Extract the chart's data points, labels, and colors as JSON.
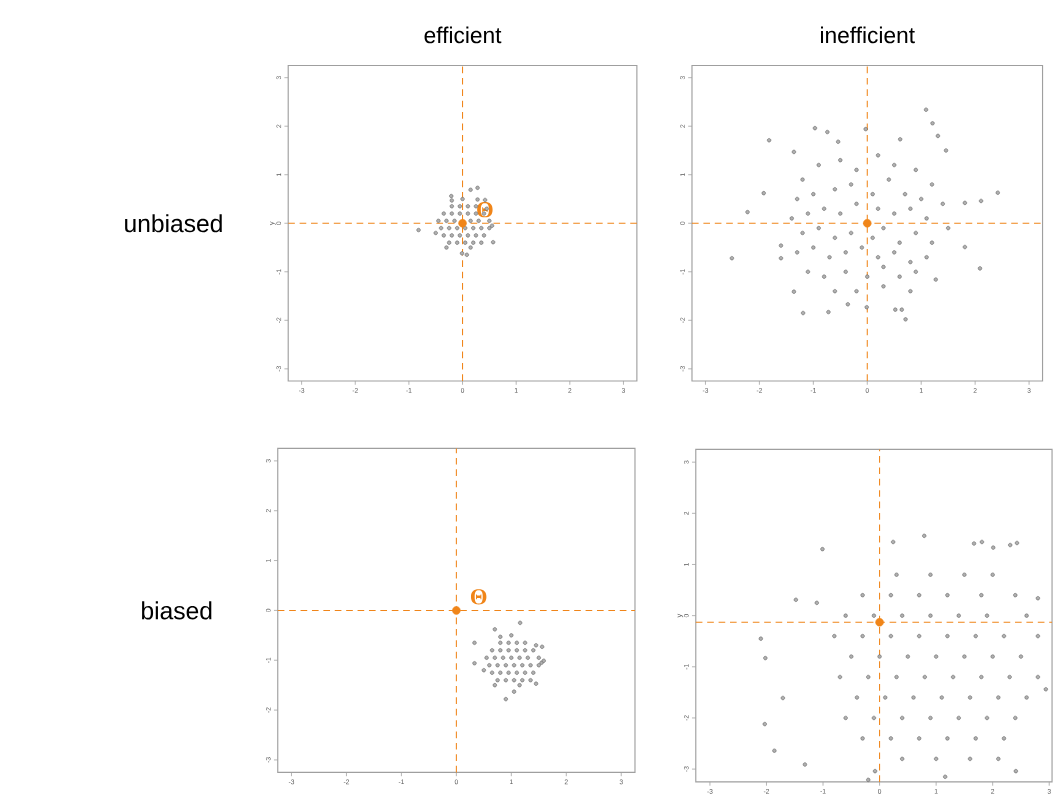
{
  "chart_data": [
    {
      "type": "scatter",
      "title": "efficient",
      "ylabel": "y",
      "xlim": [
        -3.25,
        3.25
      ],
      "ylim": [
        -3.25,
        3.25
      ],
      "xticks": [
        -3,
        -2,
        -1,
        0,
        1,
        2,
        3
      ],
      "yticks": [
        -3,
        -2,
        -1,
        0,
        1,
        2,
        3
      ],
      "annotations": [
        "unbiased",
        {
          "text": "Θ",
          "x": 0,
          "y": 0
        }
      ],
      "ref_lines": [
        {
          "axis": "x",
          "value": 0,
          "color": "#f08519",
          "line_style": "dashed"
        },
        {
          "axis": "y",
          "value": 0,
          "color": "#f08519",
          "line_style": "dashed"
        }
      ],
      "series": [
        {
          "color": "#4d4d4d",
          "marker": "circle",
          "x": [
            -0.2,
            -0.05,
            0.1,
            0.25,
            -0.35,
            -0.2,
            -0.05,
            0.1,
            0.25,
            0.4,
            -0.45,
            -0.3,
            -0.15,
            0,
            0.15,
            0.3,
            0.5,
            -0.4,
            -0.25,
            -0.1,
            0.05,
            0.2,
            0.35,
            0.5,
            -0.35,
            -0.2,
            -0.05,
            0.1,
            0.25,
            0.4,
            -0.25,
            -0.1,
            0.05,
            0.2,
            0.35,
            -0.5,
            0.55,
            0.45,
            -0.3,
            0.15,
            0,
            -0.2,
            -0.82,
            0.15,
            0.28,
            0.42,
            0.28,
            0.57,
            0.08,
            -0.01,
            -0.21
          ],
          "values": [
            0.35,
            0.35,
            0.35,
            0.35,
            0.2,
            0.2,
            0.2,
            0.2,
            0.2,
            0.2,
            0.05,
            0.05,
            0.05,
            null,
            0.05,
            0.05,
            0.05,
            -0.1,
            -0.1,
            -0.1,
            -0.1,
            -0.1,
            -0.1,
            -0.1,
            -0.25,
            -0.25,
            -0.25,
            -0.25,
            -0.25,
            -0.25,
            -0.4,
            -0.4,
            -0.4,
            -0.4,
            -0.4,
            -0.2,
            -0.05,
            0.3,
            -0.5,
            -0.5,
            0.5,
            0.47,
            -0.14,
            0.69,
            0.73,
            0.48,
            0.49,
            -0.39,
            -0.65,
            -0.62,
            0.56
          ]
        },
        {
          "color": "#f08519",
          "marker": "circle",
          "x": [
            0
          ],
          "values": [
            0
          ]
        }
      ]
    },
    {
      "type": "scatter",
      "title": "inefficient",
      "xlim": [
        -3.25,
        3.25
      ],
      "ylim": [
        -3.25,
        3.25
      ],
      "xticks": [
        -3,
        -2,
        -1,
        0,
        1,
        2,
        3
      ],
      "yticks": [
        -3,
        -2,
        -1,
        0,
        1,
        2,
        3
      ],
      "ref_lines": [
        {
          "axis": "x",
          "value": 0,
          "color": "#f08519",
          "line_style": "dashed"
        },
        {
          "axis": "y",
          "value": 0,
          "color": "#f08519",
          "line_style": "dashed"
        }
      ],
      "series": [
        {
          "color": "#4d4d4d",
          "marker": "circle",
          "x": [
            -1.2,
            -0.9,
            -0.5,
            -0.2,
            0.2,
            0.5,
            0.9,
            1.2,
            -1.3,
            -1.0,
            -0.6,
            -0.3,
            0.1,
            0.4,
            0.7,
            1.0,
            1.4,
            -1.4,
            -1.1,
            -0.8,
            -0.5,
            -0.2,
            0.2,
            0.5,
            0.8,
            1.1,
            1.5,
            -1.2,
            -0.9,
            -0.6,
            -0.3,
            0.1,
            0.3,
            0.6,
            0.9,
            1.2,
            -1.3,
            -1.0,
            -0.7,
            -0.4,
            -0.1,
            0.2,
            0.5,
            0.8,
            1.1,
            -1.1,
            -0.8,
            -0.4,
            0.0,
            0.3,
            0.6,
            0.9,
            -0.6,
            -0.2,
            0.3,
            0.8,
            -2.51,
            -2.22,
            -1.92,
            -1.82,
            -0.97,
            -0.74,
            -0.03,
            1.09,
            1.21,
            1.31,
            2.42,
            2.11,
            2.09,
            1.27,
            0.71,
            0.64,
            0.52,
            -0.72,
            -1.19,
            -1.36,
            -1.6,
            -1.6,
            1.81,
            1.81,
            1.46,
            -0.01,
            -0.36,
            -1.36,
            -0.54,
            0.61
          ],
          "values": [
            0.9,
            1.2,
            1.3,
            1.1,
            1.4,
            1.2,
            1.1,
            0.8,
            0.5,
            0.6,
            0.7,
            0.8,
            0.6,
            0.9,
            0.6,
            0.5,
            0.4,
            0.1,
            0.2,
            0.3,
            0.2,
            0.4,
            0.3,
            0.2,
            0.3,
            0.1,
            -0.1,
            -0.2,
            -0.1,
            -0.3,
            -0.2,
            -0.3,
            -0.1,
            -0.4,
            -0.2,
            -0.4,
            -0.6,
            -0.5,
            -0.7,
            -0.6,
            -0.5,
            -0.7,
            -0.6,
            -0.8,
            -0.7,
            -1.0,
            -1.1,
            -1.0,
            -1.1,
            -0.9,
            -1.1,
            -1.0,
            -1.4,
            -1.4,
            -1.3,
            -1.4,
            -0.72,
            0.23,
            0.62,
            1.71,
            1.96,
            1.88,
            1.94,
            2.34,
            2.06,
            1.8,
            0.63,
            0.46,
            -0.93,
            -1.16,
            -1.98,
            -1.78,
            -1.78,
            -1.83,
            -1.85,
            -1.41,
            -0.72,
            -0.46,
            -0.49,
            0.42,
            1.5,
            -1.73,
            -1.67,
            1.47,
            1.68,
            1.73
          ]
        },
        {
          "color": "#f08519",
          "marker": "circle",
          "x": [
            0
          ],
          "values": [
            0
          ]
        }
      ]
    },
    {
      "type": "scatter",
      "xlim": [
        -3.25,
        3.25
      ],
      "ylim": [
        -3.25,
        3.25
      ],
      "xticks": [
        -3,
        -2,
        -1,
        0,
        1,
        2,
        3
      ],
      "yticks": [
        -3,
        -2,
        -1,
        0,
        1,
        2,
        3
      ],
      "annotations": [
        "biased",
        {
          "text": "Θ",
          "x": 0,
          "y": 0
        }
      ],
      "ref_lines": [
        {
          "axis": "x",
          "value": 0,
          "color": "#f08519",
          "line_style": "dashed"
        },
        {
          "axis": "y",
          "value": 0,
          "color": "#f08519",
          "line_style": "dashed"
        }
      ],
      "series": [
        {
          "color": "#4d4d4d",
          "marker": "circle",
          "x": [
            0.8,
            0.95,
            1.1,
            1.25,
            0.65,
            0.8,
            0.95,
            1.1,
            1.25,
            1.4,
            0.55,
            0.7,
            0.85,
            1.0,
            1.15,
            1.3,
            1.5,
            0.6,
            0.75,
            0.9,
            1.05,
            1.2,
            1.35,
            1.5,
            0.65,
            0.8,
            0.95,
            1.1,
            1.25,
            1.4,
            0.75,
            0.9,
            1.05,
            1.2,
            1.35,
            0.5,
            1.55,
            1.45,
            0.7,
            1.15,
            1.0,
            0.8,
            0.33,
            0.33,
            0.7,
            1.16,
            0.9,
            1.05,
            1.45,
            1.56,
            1.59
          ],
          "values": [
            -0.65,
            -0.65,
            -0.65,
            -0.65,
            -0.8,
            -0.8,
            -0.8,
            -0.8,
            -0.8,
            -0.8,
            -0.95,
            -0.95,
            -0.95,
            -0.95,
            -0.95,
            -0.95,
            -0.95,
            -1.1,
            -1.1,
            -1.1,
            -1.1,
            -1.1,
            -1.1,
            -1.1,
            -1.25,
            -1.25,
            -1.25,
            -1.25,
            -1.25,
            -1.25,
            -1.4,
            -1.4,
            -1.4,
            -1.4,
            -1.4,
            -1.2,
            -1.05,
            -0.7,
            -1.5,
            -1.5,
            -0.5,
            -0.53,
            -0.65,
            -1.06,
            -0.38,
            -0.25,
            -1.78,
            -1.63,
            -1.47,
            -0.73,
            -1.01
          ]
        },
        {
          "color": "#f08519",
          "marker": "circle",
          "x": [
            0
          ],
          "values": [
            0
          ]
        }
      ]
    },
    {
      "type": "scatter",
      "ylabel": "y",
      "xlim": [
        -3.25,
        3.05
      ],
      "ylim": [
        -3.25,
        3.25
      ],
      "xticks": [
        -3,
        -2,
        -1,
        0,
        1,
        2,
        3
      ],
      "yticks": [
        -3,
        -2,
        -1,
        0,
        1,
        2,
        3
      ],
      "ref_lines": [
        {
          "axis": "x",
          "value": 0,
          "color": "#f08519",
          "line_style": "dashed"
        },
        {
          "axis": "y",
          "value": -0.13,
          "color": "#f08519",
          "line_style": "dashed"
        }
      ],
      "series": [
        {
          "color": "#4d4d4d",
          "marker": "circle",
          "x": [
            0.3,
            0.9,
            1.5,
            2.0,
            -0.3,
            0.2,
            0.7,
            1.2,
            1.8,
            2.4,
            -0.6,
            -0.1,
            0.4,
            0.9,
            1.4,
            1.9,
            2.6,
            -0.8,
            -0.3,
            0.2,
            0.7,
            1.2,
            1.7,
            2.2,
            2.8,
            -0.5,
            0.0,
            0.5,
            1.0,
            1.5,
            2.0,
            2.5,
            -0.7,
            -0.2,
            0.3,
            0.8,
            1.3,
            1.8,
            2.3,
            2.8,
            -0.4,
            0.1,
            0.6,
            1.1,
            1.6,
            2.1,
            2.6,
            -0.6,
            -0.1,
            0.4,
            0.9,
            1.4,
            1.9,
            2.4,
            -0.3,
            0.2,
            0.7,
            1.2,
            1.7,
            2.2,
            0.4,
            1.0,
            1.6,
            2.1,
            -1.01,
            -2.1,
            -2.02,
            -2.03,
            -1.86,
            -1.32,
            -1.71,
            -1.48,
            -1.11,
            0.24,
            0.79,
            1.67,
            1.81,
            2.31,
            2.43,
            1.16,
            -0.08,
            -0.2,
            2.41,
            2.94,
            2.8,
            2.01
          ],
          "values": [
            0.8,
            0.8,
            0.8,
            0.8,
            0.4,
            0.4,
            0.4,
            0.4,
            0.4,
            0.4,
            0.0,
            0.0,
            0.0,
            0.0,
            0.0,
            0.0,
            0.0,
            -0.4,
            -0.4,
            -0.4,
            -0.4,
            -0.4,
            -0.4,
            -0.4,
            -0.4,
            -0.8,
            -0.8,
            -0.8,
            -0.8,
            -0.8,
            -0.8,
            -0.8,
            -1.2,
            -1.2,
            -1.2,
            -1.2,
            -1.2,
            -1.2,
            -1.2,
            -1.2,
            -1.6,
            -1.6,
            -1.6,
            -1.6,
            -1.6,
            -1.6,
            -1.6,
            -2.0,
            -2.0,
            -2.0,
            -2.0,
            -2.0,
            -2.0,
            -2.0,
            -2.4,
            -2.4,
            -2.4,
            -2.4,
            -2.4,
            -2.4,
            -2.8,
            -2.8,
            -2.8,
            -2.8,
            1.3,
            -0.45,
            -0.83,
            -2.12,
            -2.64,
            -2.91,
            -1.61,
            0.31,
            0.25,
            1.44,
            1.56,
            1.41,
            1.44,
            1.38,
            1.42,
            -3.15,
            -3.04,
            -3.21,
            -3.04,
            -1.44,
            0.34,
            1.33
          ]
        },
        {
          "color": "#f08519",
          "marker": "circle",
          "x": [
            0
          ],
          "values": [
            -0.13
          ]
        }
      ]
    }
  ]
}
